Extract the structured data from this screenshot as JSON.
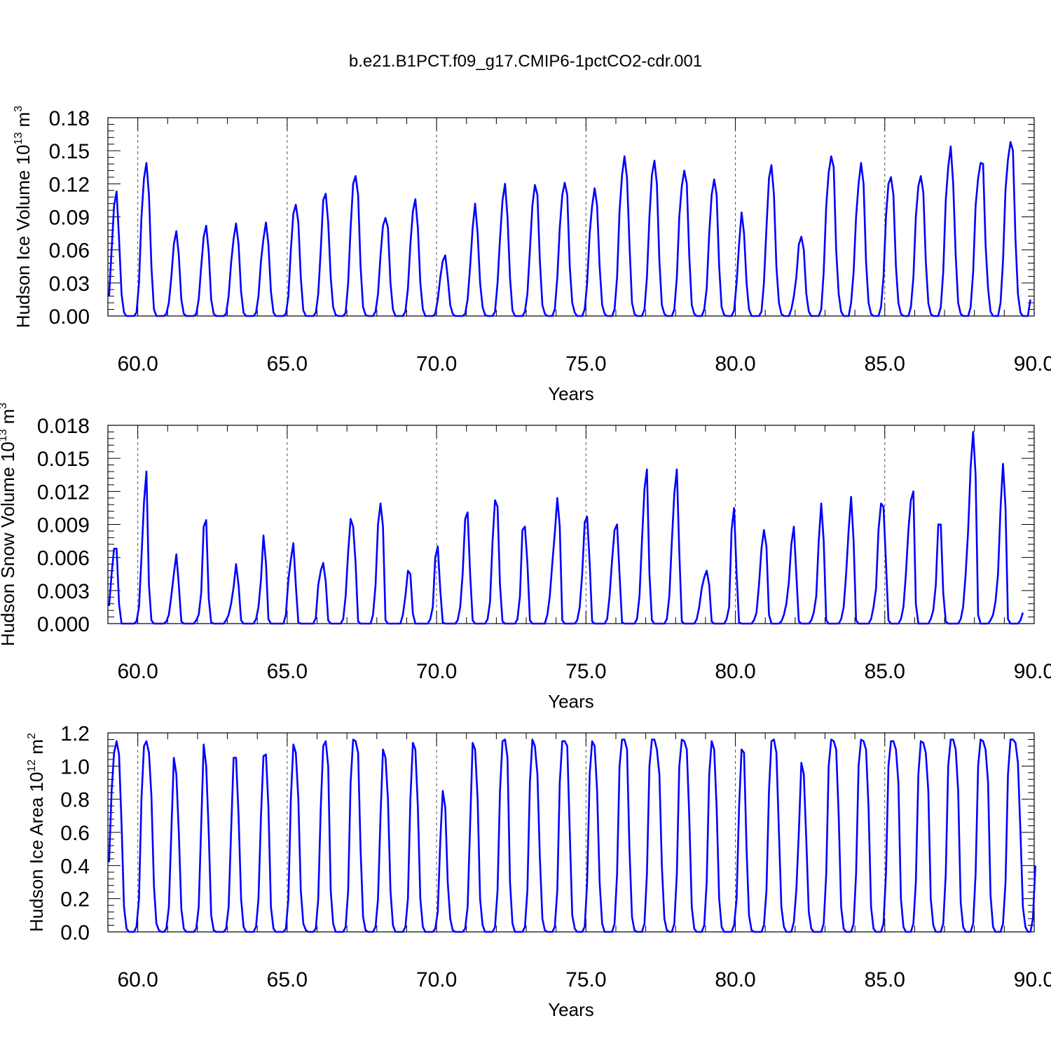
{
  "title": "b.e21.B1PCT.f09_g17.CMIP6-1pctCO2-cdr.001",
  "colors": {
    "series": "#0000ff",
    "axis": "#000000",
    "grid": "#555555"
  },
  "chart_data": [
    {
      "type": "line",
      "ylabel_parts": [
        "Hudson Ice Volume 10",
        "13",
        " m",
        "3"
      ],
      "xlabel": "Years",
      "xlim": [
        59.0,
        90.0
      ],
      "ylim": [
        0.0,
        0.18
      ],
      "x_ticks": [
        60,
        65,
        70,
        75,
        80,
        85,
        90
      ],
      "x_tick_labels": [
        "60.0",
        "65.0",
        "70.0",
        "75.0",
        "80.0",
        "85.0",
        "90.0"
      ],
      "y_ticks": [
        0,
        0.03,
        0.06,
        0.09,
        0.12,
        0.15,
        0.18
      ],
      "y_tick_labels": [
        "0.00",
        "0.03",
        "0.06",
        "0.09",
        "0.12",
        "0.15",
        "0.18"
      ],
      "grid": "dashed vertical lines at major x ticks",
      "series_color": "#0000ff",
      "x_start": 59.04,
      "x_step": 0.0833333,
      "values": [
        0.018,
        0.06,
        0.1,
        0.113,
        0.07,
        0.02,
        0.003,
        0.0,
        0.0,
        0.0,
        0.0,
        0.003,
        0.03,
        0.09,
        0.125,
        0.139,
        0.11,
        0.045,
        0.006,
        0.0,
        0.0,
        0.0,
        0.0,
        0.002,
        0.012,
        0.035,
        0.065,
        0.077,
        0.055,
        0.015,
        0.002,
        0.0,
        0.0,
        0.0,
        0.0,
        0.002,
        0.015,
        0.045,
        0.072,
        0.082,
        0.058,
        0.015,
        0.002,
        0.0,
        0.0,
        0.0,
        0.0,
        0.002,
        0.018,
        0.048,
        0.07,
        0.084,
        0.065,
        0.022,
        0.003,
        0.0,
        0.0,
        0.0,
        0.0,
        0.003,
        0.018,
        0.05,
        0.07,
        0.085,
        0.065,
        0.022,
        0.003,
        0.0,
        0.0,
        0.0,
        0.0,
        0.002,
        0.018,
        0.06,
        0.093,
        0.101,
        0.085,
        0.035,
        0.005,
        0.0,
        0.0,
        0.0,
        0.0,
        0.003,
        0.02,
        0.06,
        0.105,
        0.111,
        0.085,
        0.035,
        0.008,
        0.001,
        0.0,
        0.0,
        0.0,
        0.003,
        0.03,
        0.08,
        0.12,
        0.127,
        0.11,
        0.045,
        0.008,
        0.001,
        0.0,
        0.0,
        0.0,
        0.004,
        0.02,
        0.055,
        0.082,
        0.089,
        0.08,
        0.03,
        0.006,
        0.0,
        0.0,
        0.0,
        0.0,
        0.004,
        0.025,
        0.065,
        0.095,
        0.106,
        0.08,
        0.03,
        0.006,
        0.0,
        0.0,
        0.0,
        0.0,
        0.002,
        0.015,
        0.035,
        0.05,
        0.055,
        0.035,
        0.01,
        0.002,
        0.0,
        0.0,
        0.0,
        0.0,
        0.002,
        0.015,
        0.045,
        0.08,
        0.102,
        0.075,
        0.03,
        0.008,
        0.001,
        0.0,
        0.0,
        0.0,
        0.004,
        0.03,
        0.07,
        0.105,
        0.12,
        0.09,
        0.035,
        0.005,
        0.0,
        0.0,
        0.0,
        0.0,
        0.004,
        0.02,
        0.06,
        0.1,
        0.119,
        0.11,
        0.05,
        0.01,
        0.002,
        0.0,
        0.0,
        0.0,
        0.006,
        0.035,
        0.08,
        0.11,
        0.121,
        0.11,
        0.045,
        0.012,
        0.003,
        0.0,
        0.0,
        0.0,
        0.006,
        0.03,
        0.075,
        0.1,
        0.116,
        0.1,
        0.045,
        0.01,
        0.002,
        0.0,
        0.0,
        0.0,
        0.006,
        0.035,
        0.095,
        0.128,
        0.145,
        0.125,
        0.065,
        0.012,
        0.002,
        0.0,
        0.0,
        0.0,
        0.006,
        0.035,
        0.09,
        0.128,
        0.141,
        0.12,
        0.05,
        0.01,
        0.002,
        0.0,
        0.0,
        0.0,
        0.006,
        0.035,
        0.09,
        0.118,
        0.132,
        0.12,
        0.055,
        0.01,
        0.002,
        0.0,
        0.0,
        0.0,
        0.006,
        0.025,
        0.075,
        0.11,
        0.124,
        0.11,
        0.045,
        0.008,
        0.001,
        0.0,
        0.0,
        0.0,
        0.005,
        0.03,
        0.065,
        0.094,
        0.075,
        0.03,
        0.006,
        0.0,
        0.0,
        0.0,
        0.0,
        0.004,
        0.03,
        0.08,
        0.125,
        0.137,
        0.11,
        0.045,
        0.012,
        0.002,
        0.0,
        0.0,
        0.0,
        0.006,
        0.018,
        0.035,
        0.065,
        0.072,
        0.06,
        0.02,
        0.004,
        0.0,
        0.0,
        0.0,
        0.0,
        0.006,
        0.04,
        0.1,
        0.13,
        0.145,
        0.135,
        0.06,
        0.02,
        0.004,
        0.0,
        0.0,
        0.0,
        0.012,
        0.04,
        0.09,
        0.12,
        0.139,
        0.12,
        0.05,
        0.012,
        0.002,
        0.0,
        0.0,
        0.0,
        0.008,
        0.035,
        0.09,
        0.12,
        0.126,
        0.11,
        0.045,
        0.012,
        0.002,
        0.0,
        0.0,
        0.0,
        0.008,
        0.035,
        0.09,
        0.118,
        0.127,
        0.112,
        0.05,
        0.012,
        0.002,
        0.0,
        0.0,
        0.0,
        0.008,
        0.04,
        0.105,
        0.135,
        0.154,
        0.12,
        0.055,
        0.012,
        0.002,
        0.0,
        0.0,
        0.0,
        0.008,
        0.04,
        0.1,
        0.125,
        0.139,
        0.138,
        0.065,
        0.025,
        0.004,
        0.0,
        0.0,
        0.0,
        0.012,
        0.05,
        0.115,
        0.142,
        0.158,
        0.15,
        0.07,
        0.02,
        0.003,
        0.0,
        0.0,
        0.0,
        0.015
      ]
    },
    {
      "type": "line",
      "ylabel_parts": [
        "Hudson Snow Volume 10",
        "13",
        " m",
        "3"
      ],
      "xlabel": "Years",
      "xlim": [
        59.0,
        90.0
      ],
      "ylim": [
        0.0,
        0.018
      ],
      "x_ticks": [
        60,
        65,
        70,
        75,
        80,
        85,
        90
      ],
      "x_tick_labels": [
        "60.0",
        "65.0",
        "70.0",
        "75.0",
        "80.0",
        "85.0",
        "90.0"
      ],
      "y_ticks": [
        0,
        0.003,
        0.006,
        0.009,
        0.012,
        0.015,
        0.018
      ],
      "y_tick_labels": [
        "0.000",
        "0.003",
        "0.006",
        "0.009",
        "0.012",
        "0.015",
        "0.018"
      ],
      "grid": "dashed vertical lines at major x ticks",
      "series_color": "#0000ff",
      "x_start": 59.04,
      "x_step": 0.0833333,
      "values": [
        0.0016,
        0.0045,
        0.0068,
        0.0068,
        0.0018,
        0.0,
        0.0,
        0.0,
        0.0,
        0.0,
        0.0,
        0.0002,
        0.0015,
        0.006,
        0.011,
        0.0138,
        0.0035,
        0.0003,
        0.0,
        0.0,
        0.0,
        0.0,
        0.0,
        0.0002,
        0.0008,
        0.0025,
        0.0045,
        0.0063,
        0.0035,
        0.0002,
        0.0,
        0.0,
        0.0,
        0.0,
        0.0,
        0.0003,
        0.0008,
        0.0028,
        0.0088,
        0.0094,
        0.0023,
        0.0001,
        0.0,
        0.0,
        0.0,
        0.0,
        0.0,
        0.0003,
        0.0008,
        0.0018,
        0.0033,
        0.0054,
        0.0035,
        0.0003,
        0.0,
        0.0,
        0.0,
        0.0,
        0.0,
        0.0004,
        0.0015,
        0.004,
        0.008,
        0.0055,
        0.0004,
        0.0,
        0.0,
        0.0,
        0.0,
        0.0,
        0.0,
        0.0008,
        0.004,
        0.0058,
        0.0073,
        0.0035,
        0.0001,
        0.0,
        0.0,
        0.0,
        0.0,
        0.0,
        0.0,
        0.0005,
        0.0035,
        0.0048,
        0.0055,
        0.0038,
        0.0003,
        0.0,
        0.0,
        0.0,
        0.0,
        0.0,
        0.0004,
        0.0025,
        0.0065,
        0.0095,
        0.0088,
        0.0055,
        0.0002,
        0.0,
        0.0,
        0.0,
        0.0,
        0.0,
        0.0008,
        0.0035,
        0.009,
        0.0109,
        0.0088,
        0.0003,
        0.0,
        0.0,
        0.0,
        0.0,
        0.0,
        0.0,
        0.0008,
        0.0025,
        0.0048,
        0.0045,
        0.0009,
        0.0,
        0.0,
        0.0,
        0.0,
        0.0,
        0.0,
        0.0004,
        0.0015,
        0.006,
        0.007,
        0.003,
        0.0001,
        0.0,
        0.0,
        0.0,
        0.0,
        0.0,
        0.0003,
        0.0015,
        0.0045,
        0.0095,
        0.0101,
        0.0045,
        0.0003,
        0.0,
        0.0,
        0.0,
        0.0,
        0.0,
        0.0004,
        0.002,
        0.0075,
        0.0112,
        0.0106,
        0.0035,
        0.0002,
        0.0,
        0.0,
        0.0,
        0.0,
        0.0,
        0.0004,
        0.0025,
        0.0085,
        0.0088,
        0.0055,
        0.0003,
        0.0,
        0.0,
        0.0,
        0.0,
        0.0,
        0.0,
        0.0008,
        0.0025,
        0.0055,
        0.0082,
        0.0114,
        0.0088,
        0.0003,
        0.0,
        0.0,
        0.0,
        0.0,
        0.0,
        0.0003,
        0.0015,
        0.0045,
        0.0092,
        0.0097,
        0.0055,
        0.0002,
        0.0,
        0.0,
        0.0,
        0.0,
        0.0,
        0.0004,
        0.0025,
        0.0058,
        0.0085,
        0.009,
        0.0045,
        0.0001,
        0.0,
        0.0,
        0.0,
        0.0,
        0.0,
        0.0004,
        0.0025,
        0.0075,
        0.0122,
        0.014,
        0.0045,
        0.0003,
        0.0,
        0.0,
        0.0,
        0.0,
        0.0,
        0.0004,
        0.0025,
        0.0075,
        0.0118,
        0.014,
        0.0065,
        0.0002,
        0.0,
        0.0,
        0.0,
        0.0,
        0.0,
        0.0004,
        0.0015,
        0.0032,
        0.0042,
        0.0048,
        0.0035,
        0.0002,
        0.0,
        0.0,
        0.0,
        0.0,
        0.0,
        0.0004,
        0.0015,
        0.0085,
        0.0105,
        0.0045,
        0.0001,
        0.0,
        0.0,
        0.0,
        0.0,
        0.0,
        0.0003,
        0.001,
        0.0035,
        0.0068,
        0.0085,
        0.007,
        0.0008,
        0.0,
        0.0,
        0.0,
        0.0,
        0.0002,
        0.0008,
        0.0018,
        0.0038,
        0.0072,
        0.0088,
        0.0045,
        0.0002,
        0.0,
        0.0,
        0.0,
        0.0,
        0.0003,
        0.001,
        0.0025,
        0.0075,
        0.0109,
        0.0075,
        0.0003,
        0.0,
        0.0,
        0.0,
        0.0,
        0.0,
        0.0004,
        0.0015,
        0.0045,
        0.0085,
        0.0115,
        0.0075,
        0.0003,
        0.0,
        0.0,
        0.0,
        0.0,
        0.0,
        0.0004,
        0.0015,
        0.0032,
        0.0085,
        0.0109,
        0.0106,
        0.0055,
        0.0003,
        0.0,
        0.0,
        0.0,
        0.0,
        0.0004,
        0.0015,
        0.0045,
        0.0085,
        0.0112,
        0.012,
        0.0018,
        0.0,
        0.0,
        0.0,
        0.0,
        0.0,
        0.0004,
        0.0012,
        0.0035,
        0.009,
        0.009,
        0.0028,
        0.0002,
        0.0,
        0.0,
        0.0,
        0.0,
        0.0,
        0.0004,
        0.0015,
        0.0045,
        0.0085,
        0.0142,
        0.0174,
        0.0135,
        0.0008,
        0.0,
        0.0,
        0.0,
        0.0,
        0.0003,
        0.0008,
        0.002,
        0.0045,
        0.0105,
        0.0145,
        0.0105,
        0.0004,
        0.0,
        0.0,
        0.0,
        0.0,
        0.0003,
        0.001
      ]
    },
    {
      "type": "line",
      "ylabel_parts": [
        "Hudson Ice Area 10",
        "12",
        " m",
        "2"
      ],
      "xlabel": "Years",
      "xlim": [
        59.0,
        90.0
      ],
      "ylim": [
        0.0,
        1.2
      ],
      "x_ticks": [
        60,
        65,
        70,
        75,
        80,
        85,
        90
      ],
      "x_tick_labels": [
        "60.0",
        "65.0",
        "70.0",
        "75.0",
        "80.0",
        "85.0",
        "90.0"
      ],
      "y_ticks": [
        0,
        0.2,
        0.4,
        0.6,
        0.8,
        1.0,
        1.2
      ],
      "y_tick_labels": [
        "0.0",
        "0.2",
        "0.4",
        "0.6",
        "0.8",
        "1.0",
        "1.2"
      ],
      "grid": "dashed vertical lines at major x ticks",
      "series_color": "#0000ff",
      "x_start": 59.04,
      "x_step": 0.0833333,
      "values": [
        0.42,
        0.85,
        1.08,
        1.15,
        1.07,
        0.65,
        0.15,
        0.02,
        0.0,
        0.0,
        0.0,
        0.03,
        0.2,
        0.8,
        1.12,
        1.15,
        1.08,
        0.82,
        0.28,
        0.05,
        0.01,
        0.0,
        0.0,
        0.02,
        0.15,
        0.6,
        1.05,
        0.95,
        0.6,
        0.14,
        0.02,
        0.0,
        0.0,
        0.0,
        0.0,
        0.02,
        0.15,
        0.65,
        1.13,
        1.0,
        0.6,
        0.1,
        0.01,
        0.0,
        0.0,
        0.0,
        0.0,
        0.02,
        0.15,
        0.6,
        1.05,
        1.05,
        0.7,
        0.2,
        0.03,
        0.0,
        0.0,
        0.0,
        0.0,
        0.03,
        0.2,
        0.7,
        1.06,
        1.07,
        0.75,
        0.15,
        0.02,
        0.0,
        0.0,
        0.0,
        0.0,
        0.02,
        0.2,
        0.8,
        1.13,
        1.08,
        0.8,
        0.25,
        0.05,
        0.01,
        0.0,
        0.0,
        0.0,
        0.02,
        0.2,
        0.75,
        1.12,
        1.15,
        1.0,
        0.25,
        0.05,
        0.0,
        0.0,
        0.0,
        0.0,
        0.03,
        0.25,
        0.9,
        1.16,
        1.15,
        1.08,
        0.5,
        0.09,
        0.01,
        0.0,
        0.0,
        0.0,
        0.03,
        0.2,
        0.7,
        1.1,
        1.05,
        0.8,
        0.25,
        0.04,
        0.0,
        0.0,
        0.0,
        0.0,
        0.03,
        0.2,
        0.8,
        1.14,
        1.1,
        0.75,
        0.2,
        0.03,
        0.0,
        0.0,
        0.0,
        0.0,
        0.02,
        0.12,
        0.55,
        0.85,
        0.75,
        0.3,
        0.08,
        0.01,
        0.0,
        0.0,
        0.0,
        0.0,
        0.02,
        0.15,
        0.65,
        1.14,
        1.1,
        0.8,
        0.2,
        0.04,
        0.0,
        0.0,
        0.0,
        0.0,
        0.03,
        0.25,
        0.85,
        1.15,
        1.16,
        1.05,
        0.3,
        0.05,
        0.0,
        0.0,
        0.0,
        0.0,
        0.03,
        0.25,
        0.9,
        1.16,
        1.12,
        0.95,
        0.45,
        0.08,
        0.01,
        0.0,
        0.0,
        0.0,
        0.03,
        0.25,
        0.9,
        1.15,
        1.15,
        1.12,
        0.6,
        0.1,
        0.02,
        0.0,
        0.0,
        0.0,
        0.03,
        0.3,
        0.95,
        1.15,
        1.12,
        0.85,
        0.3,
        0.05,
        0.0,
        0.0,
        0.0,
        0.0,
        0.05,
        0.35,
        1.0,
        1.16,
        1.16,
        1.1,
        0.5,
        0.09,
        0.01,
        0.0,
        0.0,
        0.0,
        0.05,
        0.35,
        1.0,
        1.16,
        1.16,
        1.1,
        0.95,
        0.4,
        0.08,
        0.01,
        0.0,
        0.0,
        0.05,
        0.35,
        1.0,
        1.16,
        1.15,
        1.1,
        0.7,
        0.15,
        0.02,
        0.0,
        0.0,
        0.0,
        0.04,
        0.3,
        0.95,
        1.15,
        1.1,
        0.75,
        0.2,
        0.03,
        0.0,
        0.0,
        0.0,
        0.0,
        0.04,
        0.2,
        0.75,
        1.1,
        1.08,
        0.5,
        0.1,
        0.01,
        0.0,
        0.0,
        0.0,
        0.0,
        0.04,
        0.25,
        0.85,
        1.15,
        1.16,
        1.08,
        0.6,
        0.15,
        0.03,
        0.0,
        0.0,
        0.0,
        0.06,
        0.25,
        0.6,
        1.02,
        0.95,
        0.55,
        0.12,
        0.02,
        0.0,
        0.0,
        0.0,
        0.0,
        0.05,
        0.35,
        1.0,
        1.16,
        1.15,
        1.1,
        0.7,
        0.15,
        0.02,
        0.0,
        0.0,
        0.0,
        0.05,
        0.35,
        1.0,
        1.16,
        1.15,
        1.1,
        0.75,
        0.15,
        0.02,
        0.0,
        0.0,
        0.0,
        0.05,
        0.35,
        1.0,
        1.15,
        1.15,
        1.1,
        0.9,
        0.2,
        0.03,
        0.0,
        0.0,
        0.0,
        0.05,
        0.3,
        0.95,
        1.15,
        1.14,
        1.08,
        0.85,
        0.2,
        0.04,
        0.0,
        0.0,
        0.0,
        0.05,
        0.35,
        1.0,
        1.16,
        1.16,
        1.1,
        0.85,
        0.18,
        0.03,
        0.0,
        0.0,
        0.0,
        0.05,
        0.35,
        1.0,
        1.16,
        1.15,
        1.1,
        0.9,
        0.22,
        0.03,
        0.0,
        0.0,
        0.0,
        0.05,
        0.3,
        0.95,
        1.16,
        1.16,
        1.14,
        1.02,
        0.6,
        0.15,
        0.03,
        0.0,
        0.0,
        0.08,
        0.4
      ]
    }
  ]
}
